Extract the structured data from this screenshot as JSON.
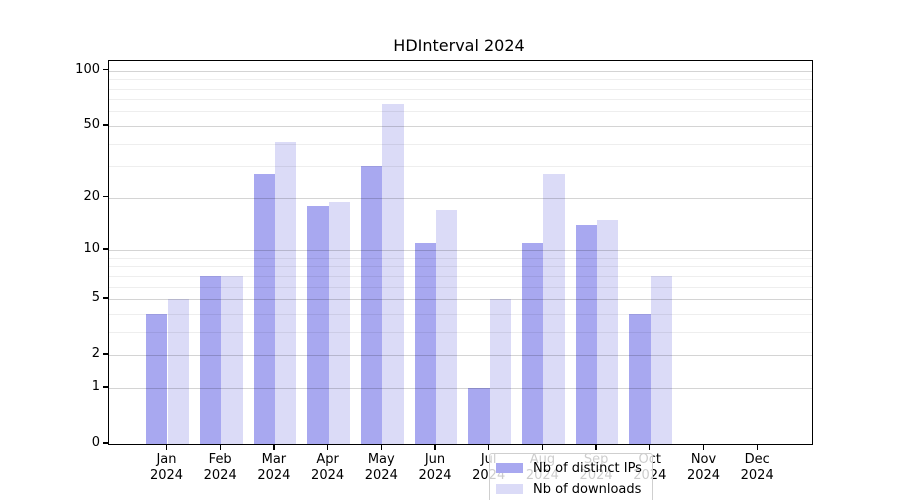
{
  "chart_data": {
    "type": "bar",
    "title": "HDInterval 2024",
    "y_scale": "log1p",
    "ylim": [
      0,
      110
    ],
    "grid": true,
    "legend_position": "lower center inside plot",
    "categories": [
      "Jan",
      "Feb",
      "Mar",
      "Apr",
      "May",
      "Jun",
      "Jul",
      "Aug",
      "Sep",
      "Oct",
      "Nov",
      "Dec"
    ],
    "year_label": "2024",
    "y_major_ticks": [
      100,
      50,
      20,
      10,
      5,
      2,
      1,
      0
    ],
    "y_minor_gridlines": [
      3,
      4,
      6,
      7,
      8,
      9,
      30,
      40,
      60,
      70,
      80,
      90
    ],
    "series": [
      {
        "name": "Nb of distinct IPs",
        "color": "#a8a8f0",
        "values": [
          4,
          7,
          27,
          18,
          30,
          11,
          1,
          11,
          14,
          4,
          0,
          0
        ]
      },
      {
        "name": "Nb of downloads",
        "color": "#dbdbf7",
        "values": [
          5,
          7,
          41,
          19,
          66,
          17,
          5,
          27,
          15,
          7,
          0,
          0
        ]
      }
    ]
  }
}
